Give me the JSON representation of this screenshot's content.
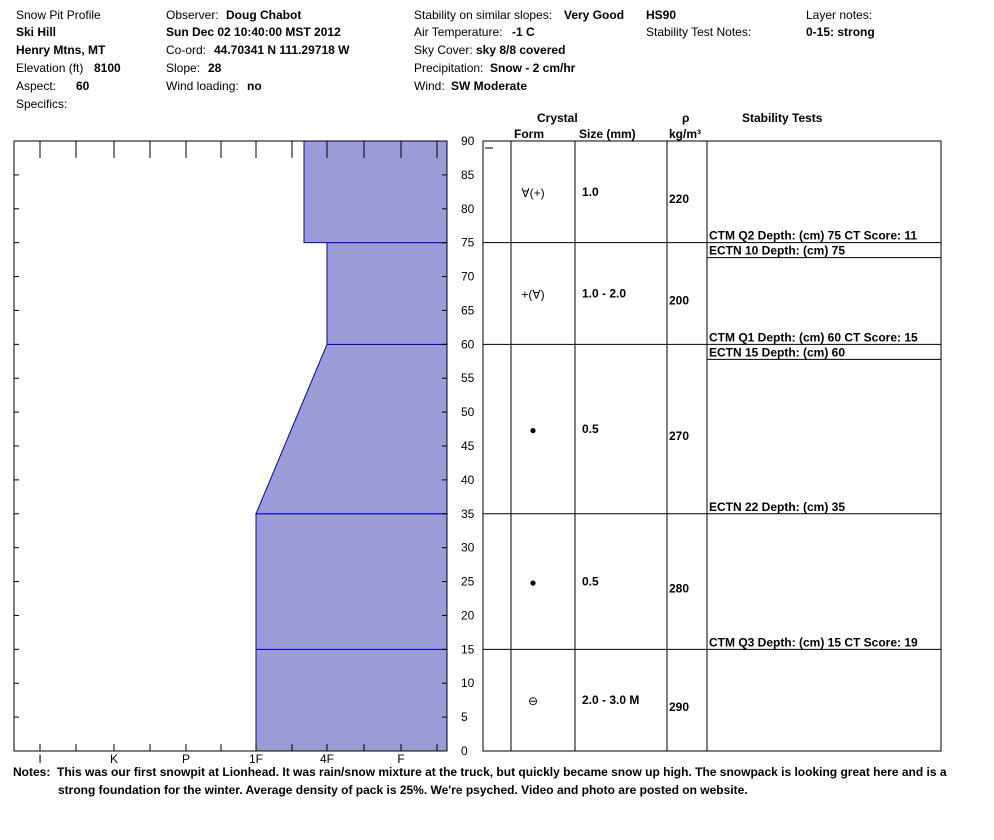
{
  "header": {
    "title": "Snow Pit Profile",
    "location_name": "Ski Hill",
    "region": "Henry Mtns, MT",
    "elevation_label": "Elevation (ft)",
    "elevation_value": "8100",
    "aspect_label": "Aspect:",
    "aspect_value": "60",
    "specifics_label": "Specifics:",
    "observer_label": "Observer:",
    "observer_value": "Doug Chabot",
    "datetime": "Sun Dec 02 10:40:00 MST 2012",
    "coord_label": "Co-ord:",
    "coord_value": "44.70341 N 111.29718 W",
    "slope_label": "Slope:",
    "slope_value": "28",
    "wind_loading_label": "Wind loading:",
    "wind_loading_value": "no",
    "stability_label": "Stability on similar slopes:",
    "stability_value": "Very Good",
    "air_temp_label": "Air Temperature:",
    "air_temp_value": "-1 C",
    "sky_label": "Sky Cover:",
    "sky_value": "sky 8/8 covered",
    "precip_label": "Precipitation:",
    "precip_value": "Snow - 2 cm/hr",
    "wind_label": "Wind:",
    "wind_value": "SW Moderate",
    "hs": "HS90",
    "stability_test_notes_label": "Stability Test Notes:",
    "layer_notes_label": "Layer notes:",
    "layer_notes_value": "0-15: strong"
  },
  "columns": {
    "crystal": "Crystal",
    "form": "Form",
    "size": "Size (mm)",
    "rho": "ρ",
    "rho_unit": "kg/m³",
    "stability_tests": "Stability Tests"
  },
  "chart_data": {
    "type": "area",
    "y_axis": {
      "min": 0,
      "max": 90,
      "ticks": [
        0,
        5,
        10,
        15,
        20,
        25,
        30,
        35,
        40,
        45,
        50,
        55,
        60,
        65,
        70,
        75,
        80,
        85,
        90
      ]
    },
    "x_axis": {
      "hardness_labels": [
        "I",
        "K",
        "P",
        "1F",
        "4F",
        "F"
      ],
      "hardness_ticks": [
        null,
        "I",
        null,
        "K",
        null,
        "P",
        null,
        "1F",
        null,
        "4F",
        null,
        "F"
      ]
    },
    "hardness_profile": [
      {
        "from": 0,
        "to": 15,
        "hardness": "1F"
      },
      {
        "from": 15,
        "to": 35,
        "hardness": "1F"
      },
      {
        "from": 35,
        "to": 60,
        "hardness_bottom": "1F",
        "hardness_top": "4F"
      },
      {
        "from": 60,
        "to": 75,
        "hardness": "4F"
      },
      {
        "from": 75,
        "to": 90,
        "hardness": "4F-"
      }
    ],
    "layers": [
      {
        "from": 75,
        "to": 90,
        "form": "∀(+)",
        "size": "1.0",
        "density": "220"
      },
      {
        "from": 60,
        "to": 75,
        "form": "+(∀)",
        "size": "1.0 - 2.0",
        "density": "200"
      },
      {
        "from": 35,
        "to": 60,
        "form": "●",
        "size": "0.5",
        "density": "270"
      },
      {
        "from": 15,
        "to": 35,
        "form": "●",
        "size": "0.5",
        "density": "280"
      },
      {
        "from": 0,
        "to": 15,
        "form": "⊖",
        "size": "2.0 - 3.0 M",
        "density": "290"
      }
    ],
    "stability_tests": [
      {
        "depth": 75,
        "text": "CTM Q2 Depth: (cm) 75 CT Score: 11",
        "side": "above"
      },
      {
        "depth": 75,
        "text": "ECTN 10   Depth: (cm) 75",
        "side": "below"
      },
      {
        "depth": 60,
        "text": "CTM Q1 Depth: (cm) 60 CT Score: 15",
        "side": "above"
      },
      {
        "depth": 60,
        "text": "ECTN 15   Depth: (cm) 60",
        "side": "below"
      },
      {
        "depth": 35,
        "text": "ECTN 22   Depth: (cm) 35",
        "side": "above"
      },
      {
        "depth": 15,
        "text": "CTM Q3 Depth: (cm) 15 CT Score: 19",
        "side": "above"
      }
    ],
    "colors": {
      "fill": "#9b9bd6",
      "stroke": "#0000cc",
      "axis": "#000000"
    }
  },
  "notes": {
    "label": "Notes:",
    "line1": "This was our first snowpit at Lionhead.  It was rain/snow mixture at the truck, but quickly became snow up high.  The snowpack is looking great here and is a",
    "line2": "strong foundation for the winter.  Average density of pack is 25%. We're psyched.  Video and photo are posted on website."
  }
}
